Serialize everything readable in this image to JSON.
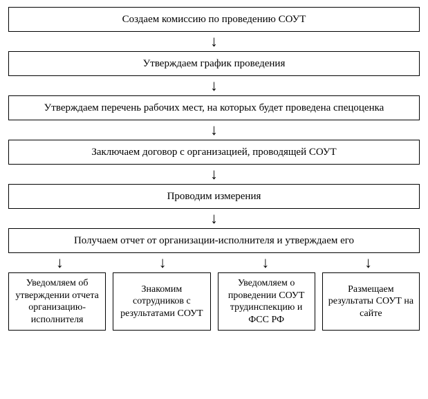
{
  "flowchart": {
    "type": "flowchart",
    "background_color": "#ffffff",
    "border_color": "#000000",
    "text_color": "#000000",
    "font_family": "Times New Roman",
    "arrow_glyph": "↓",
    "steps": [
      {
        "label": "Создаем комиссию по проведению СОУТ"
      },
      {
        "label": "Утверждаем график проведения"
      },
      {
        "label": "Утверждаем перечень рабочих мест, на которых будет проведена спецоценка"
      },
      {
        "label": "Заключаем договор с организацией, проводящей СОУТ"
      },
      {
        "label": "Проводим измерения"
      },
      {
        "label": "Получаем отчет от организации-исполнителя и утверждаем его"
      }
    ],
    "branches": [
      {
        "label": "Уведомляем об утверждении отчета организацию-исполнителя"
      },
      {
        "label": "Знакомим сотрудников с результатами СОУТ"
      },
      {
        "label": "Уведомляем о проведении СОУТ трудинспекцию и ФСС РФ"
      },
      {
        "label": "Размещаем результаты СОУТ на сайте"
      }
    ]
  }
}
